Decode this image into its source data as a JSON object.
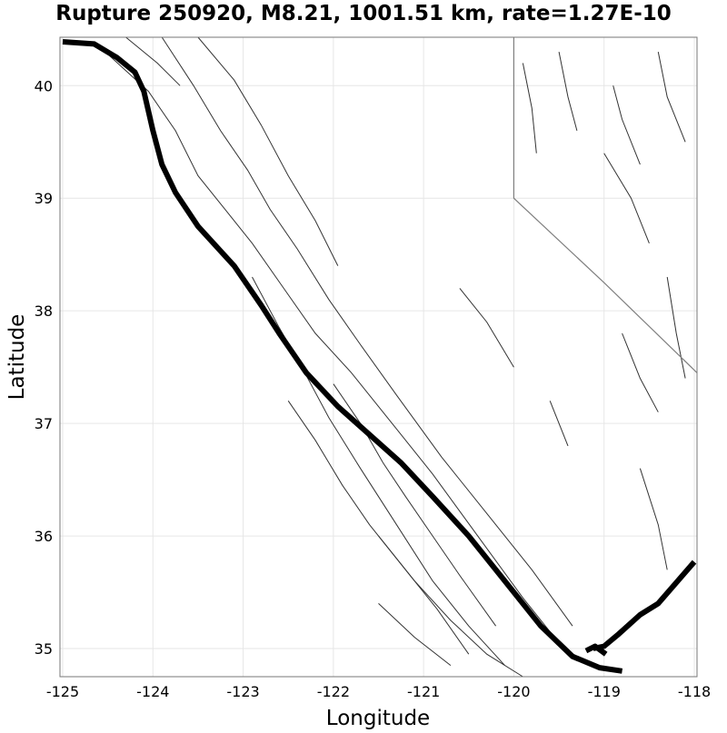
{
  "chart_data": {
    "type": "map",
    "title": "Rupture 250920, M8.21, 1001.51 km, rate=1.27E-10",
    "xlabel": "Longitude",
    "ylabel": "Latitude",
    "xlim": [
      -125.03,
      -117.97
    ],
    "ylim": [
      34.75,
      40.43
    ],
    "grid": true,
    "x_ticks": [
      {
        "value": -125,
        "label": "-125"
      },
      {
        "value": -124,
        "label": "-124"
      },
      {
        "value": -123,
        "label": "-123"
      },
      {
        "value": -122,
        "label": "-122"
      },
      {
        "value": -121,
        "label": "-121"
      },
      {
        "value": -120,
        "label": "-120"
      },
      {
        "value": -119,
        "label": "-119"
      },
      {
        "value": -118,
        "label": "-118"
      }
    ],
    "y_ticks": [
      {
        "value": 35,
        "label": "35"
      },
      {
        "value": 36,
        "label": "36"
      },
      {
        "value": 37,
        "label": "37"
      },
      {
        "value": 38,
        "label": "38"
      },
      {
        "value": 39,
        "label": "39"
      },
      {
        "value": 40,
        "label": "40"
      }
    ],
    "rupture_trace": [
      [
        -125.0,
        40.39
      ],
      [
        -124.65,
        40.37
      ],
      [
        -124.4,
        40.25
      ],
      [
        -124.2,
        40.12
      ],
      [
        -124.1,
        39.95
      ],
      [
        -124.0,
        39.6
      ],
      [
        -123.9,
        39.3
      ],
      [
        -123.75,
        39.05
      ],
      [
        -123.5,
        38.75
      ],
      [
        -123.1,
        38.4
      ],
      [
        -122.8,
        38.05
      ],
      [
        -122.6,
        37.8
      ],
      [
        -122.3,
        37.45
      ],
      [
        -121.95,
        37.15
      ],
      [
        -121.6,
        36.9
      ],
      [
        -121.25,
        36.65
      ],
      [
        -120.9,
        36.35
      ],
      [
        -120.5,
        36.0
      ],
      [
        -120.1,
        35.6
      ],
      [
        -119.7,
        35.2
      ],
      [
        -119.35,
        34.93
      ],
      [
        -119.05,
        34.83
      ],
      [
        -118.8,
        34.8
      ]
    ],
    "rupture_branch": [
      [
        -119.12,
        35.0
      ],
      [
        -119.0,
        35.02
      ],
      [
        -118.85,
        35.12
      ],
      [
        -118.6,
        35.3
      ],
      [
        -118.4,
        35.4
      ],
      [
        -118.0,
        35.77
      ]
    ],
    "rupture_spur": [
      [
        -119.2,
        34.98
      ],
      [
        -119.1,
        35.02
      ],
      [
        -118.98,
        34.95
      ]
    ],
    "faults": [
      [
        [
          -124.5,
          40.28
        ],
        [
          -124.05,
          39.95
        ],
        [
          -123.75,
          39.6
        ],
        [
          -123.5,
          39.2
        ],
        [
          -123.2,
          38.9
        ],
        [
          -122.9,
          38.6
        ],
        [
          -122.55,
          38.2
        ],
        [
          -122.2,
          37.8
        ],
        [
          -121.8,
          37.45
        ],
        [
          -121.3,
          36.95
        ],
        [
          -120.9,
          36.55
        ],
        [
          -120.4,
          36.0
        ],
        [
          -119.9,
          35.45
        ],
        [
          -119.5,
          35.05
        ]
      ],
      [
        [
          -123.9,
          40.43
        ],
        [
          -123.55,
          40.0
        ],
        [
          -123.25,
          39.6
        ],
        [
          -122.95,
          39.25
        ],
        [
          -122.7,
          38.9
        ],
        [
          -122.4,
          38.55
        ],
        [
          -122.05,
          38.1
        ],
        [
          -121.7,
          37.7
        ],
        [
          -121.3,
          37.25
        ],
        [
          -120.8,
          36.7
        ],
        [
          -120.3,
          36.2
        ],
        [
          -119.8,
          35.7
        ],
        [
          -119.35,
          35.2
        ]
      ],
      [
        [
          -122.9,
          38.3
        ],
        [
          -122.6,
          37.85
        ],
        [
          -122.35,
          37.5
        ],
        [
          -122.05,
          37.05
        ],
        [
          -121.7,
          36.6
        ],
        [
          -121.3,
          36.1
        ],
        [
          -120.9,
          35.6
        ],
        [
          -120.5,
          35.2
        ],
        [
          -120.1,
          34.85
        ]
      ],
      [
        [
          -122.5,
          37.2
        ],
        [
          -122.2,
          36.85
        ],
        [
          -121.9,
          36.45
        ],
        [
          -121.6,
          36.1
        ],
        [
          -121.25,
          35.75
        ],
        [
          -120.85,
          35.35
        ],
        [
          -120.5,
          34.95
        ]
      ],
      [
        [
          -122.0,
          37.35
        ],
        [
          -121.7,
          37.0
        ],
        [
          -121.45,
          36.65
        ],
        [
          -121.2,
          36.35
        ],
        [
          -120.9,
          36.0
        ],
        [
          -120.6,
          35.65
        ],
        [
          -120.2,
          35.2
        ]
      ],
      [
        [
          -121.5,
          36.0
        ],
        [
          -121.1,
          35.6
        ],
        [
          -120.7,
          35.25
        ],
        [
          -120.3,
          34.95
        ],
        [
          -119.9,
          34.75
        ]
      ],
      [
        [
          -123.5,
          40.43
        ],
        [
          -123.1,
          40.05
        ],
        [
          -122.8,
          39.65
        ],
        [
          -122.5,
          39.2
        ],
        [
          -122.2,
          38.8
        ],
        [
          -121.95,
          38.4
        ]
      ],
      [
        [
          -124.3,
          40.43
        ],
        [
          -123.95,
          40.2
        ],
        [
          -123.7,
          40.0
        ]
      ],
      [
        [
          -121.5,
          35.4
        ],
        [
          -121.1,
          35.1
        ],
        [
          -120.7,
          34.85
        ]
      ],
      [
        [
          -119.9,
          40.2
        ],
        [
          -119.8,
          39.8
        ],
        [
          -119.75,
          39.4
        ]
      ],
      [
        [
          -119.5,
          40.3
        ],
        [
          -119.4,
          39.9
        ],
        [
          -119.3,
          39.6
        ]
      ],
      [
        [
          -119.0,
          39.4
        ],
        [
          -118.7,
          39.0
        ],
        [
          -118.5,
          38.6
        ]
      ],
      [
        [
          -118.3,
          38.3
        ],
        [
          -118.2,
          37.8
        ],
        [
          -118.1,
          37.4
        ]
      ],
      [
        [
          -118.8,
          37.8
        ],
        [
          -118.6,
          37.4
        ],
        [
          -118.4,
          37.1
        ]
      ],
      [
        [
          -118.6,
          36.6
        ],
        [
          -118.4,
          36.1
        ],
        [
          -118.3,
          35.7
        ]
      ],
      [
        [
          -120.6,
          38.2
        ],
        [
          -120.3,
          37.9
        ],
        [
          -120.0,
          37.5
        ]
      ],
      [
        [
          -119.6,
          37.2
        ],
        [
          -119.4,
          36.8
        ]
      ],
      [
        [
          -118.9,
          40.0
        ],
        [
          -118.8,
          39.7
        ],
        [
          -118.6,
          39.3
        ]
      ],
      [
        [
          -118.4,
          40.3
        ],
        [
          -118.3,
          39.9
        ],
        [
          -118.1,
          39.5
        ]
      ]
    ],
    "state_border": [
      [
        -120.0,
        40.43
      ],
      [
        -120.0,
        39.0
      ],
      [
        -119.0,
        38.25
      ],
      [
        -117.97,
        37.45
      ]
    ]
  }
}
